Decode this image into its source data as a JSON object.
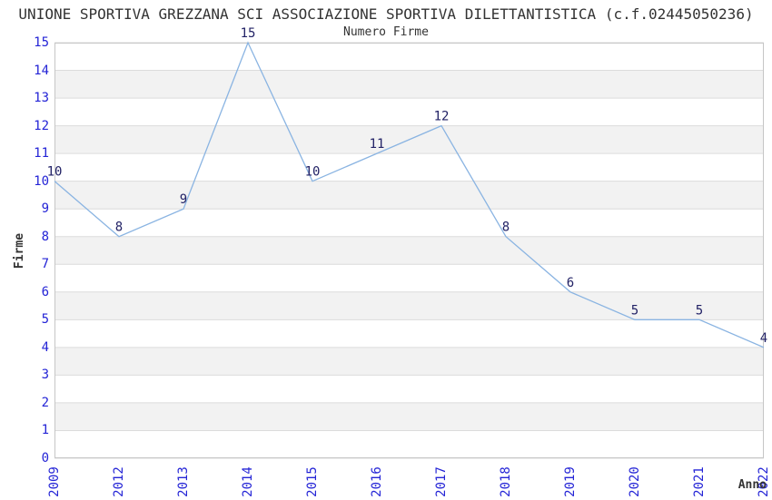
{
  "title": "UNIONE SPORTIVA GREZZANA SCI ASSOCIAZIONE SPORTIVA DILETTANTISTICA (c.f.02445050236)",
  "chart_data": {
    "type": "line",
    "title": "Numero Firme",
    "xlabel": "Anno",
    "ylabel": "Firme",
    "categories": [
      "2009",
      "2012",
      "2013",
      "2014",
      "2015",
      "2016",
      "2017",
      "2018",
      "2019",
      "2020",
      "2021",
      "2022"
    ],
    "values": [
      10,
      8,
      9,
      15,
      10,
      11,
      12,
      8,
      6,
      5,
      5,
      4
    ],
    "ylim": [
      0,
      15
    ],
    "ytick_step": 1,
    "grid": true,
    "legend": "none",
    "background_style": "alternating horizontal stripes, white and light gray, 1 unit tall",
    "colors": {
      "line": "#8ab4e2",
      "tick_label": "#2424d6",
      "data_label": "#222266",
      "stripe": "#f2f2f2",
      "grid": "#dcdcdc",
      "border": "#c6c6c6",
      "title_text": "#333333",
      "background": "#ffffff"
    }
  }
}
